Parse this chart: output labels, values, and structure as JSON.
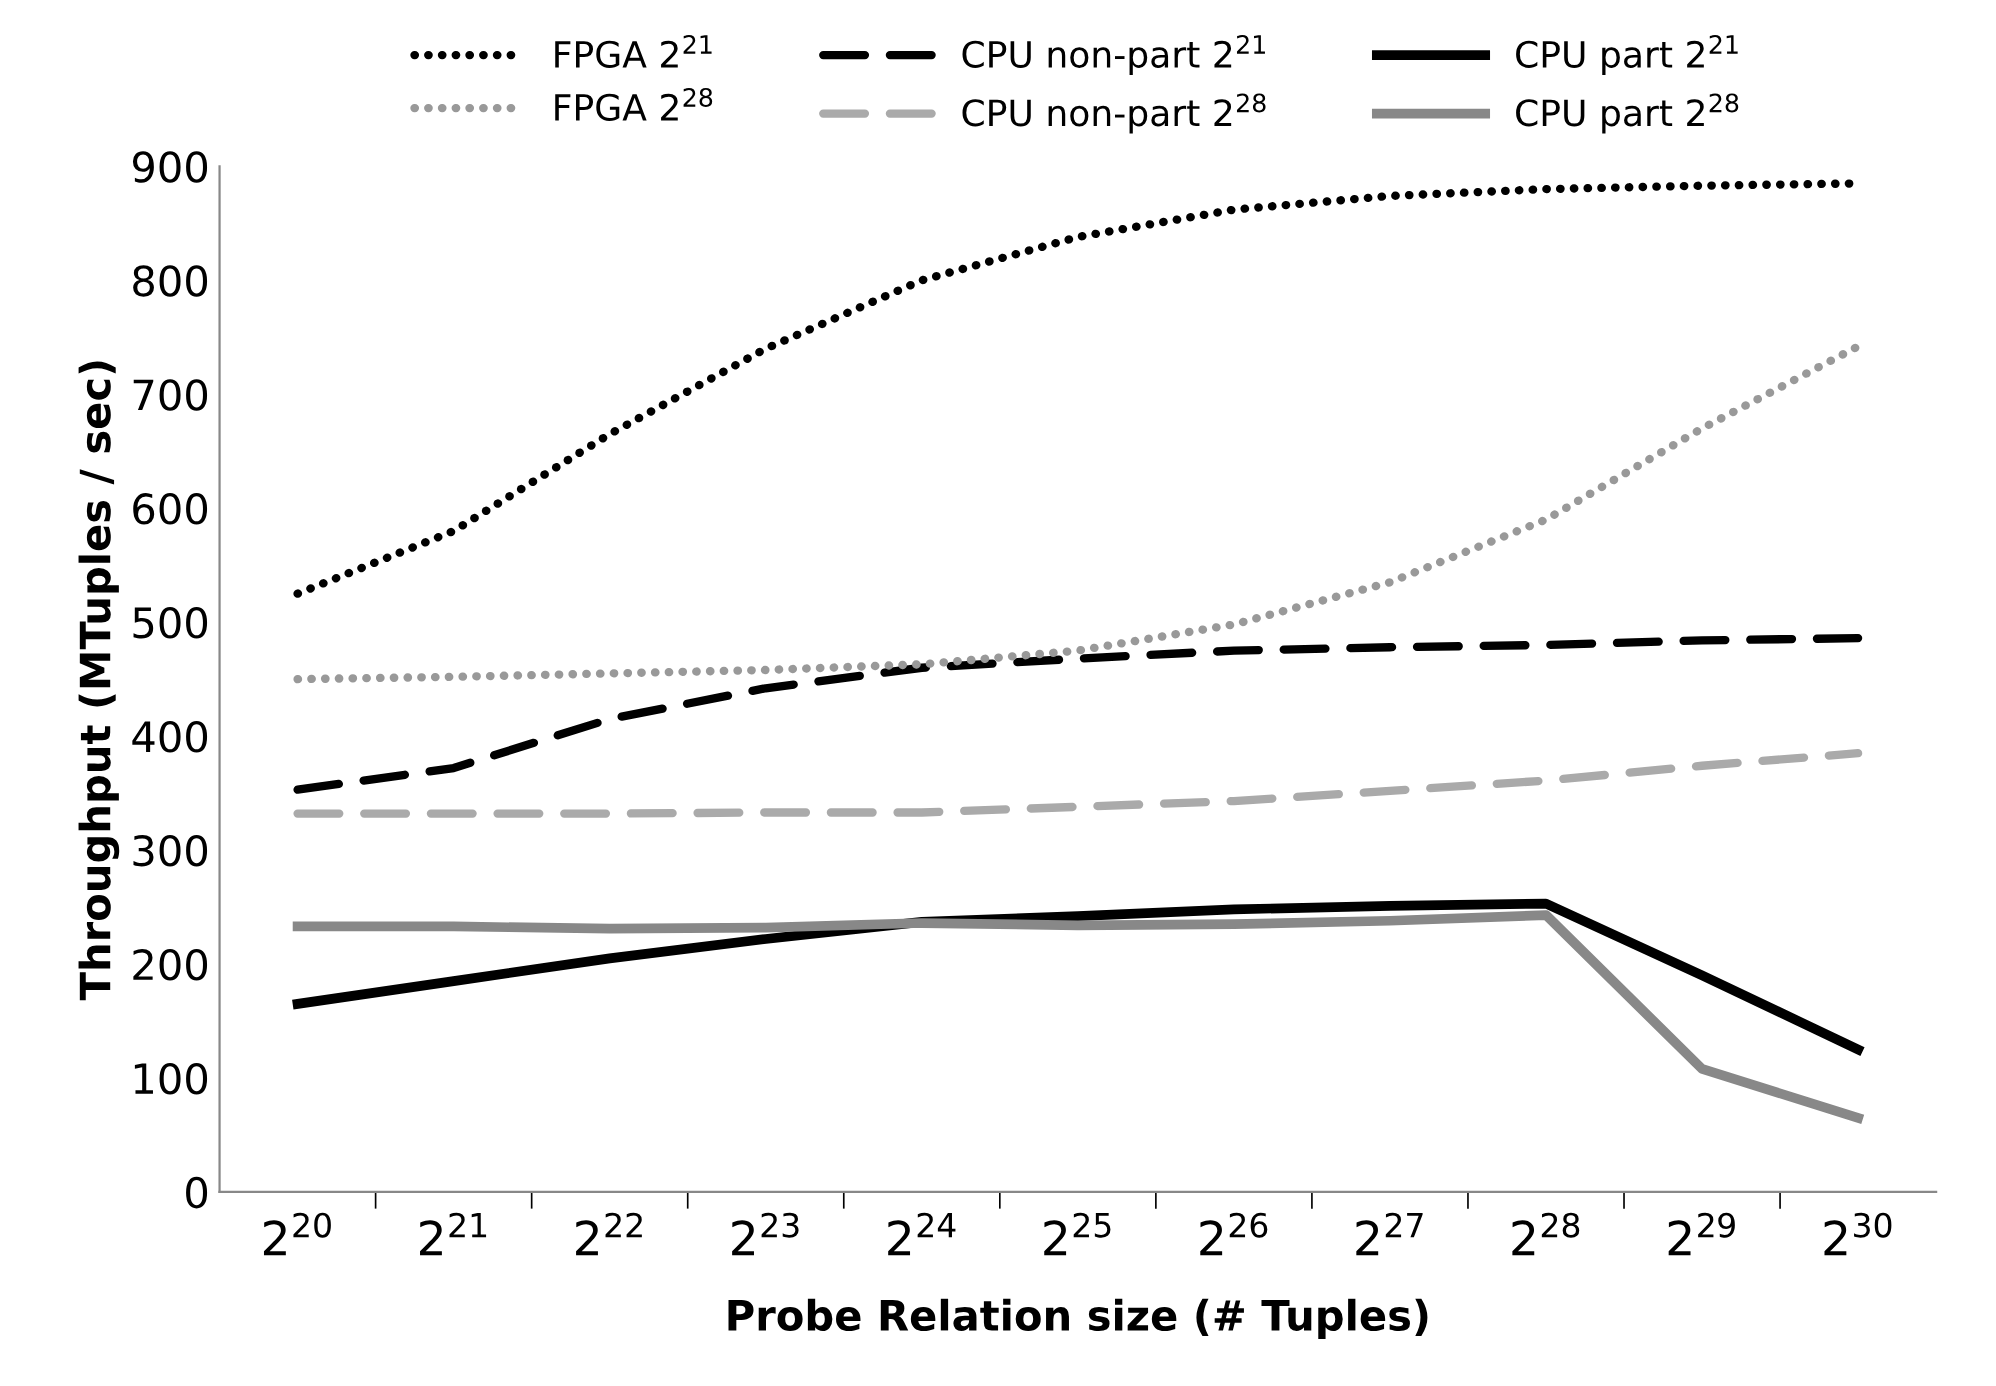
{
  "chart_data": {
    "type": "line",
    "xlabel": "Probe Relation size (# Tuples)",
    "ylabel": "Throughput (MTuples / sec)",
    "categories": [
      "2$^{20}$",
      "2$^{21}$",
      "2$^{22}$",
      "2$^{23}$",
      "2$^{24}$",
      "2$^{25}$",
      "2$^{26}$",
      "2$^{27}$",
      "2$^{28}$",
      "2$^{29}$",
      "2$^{30}$"
    ],
    "ylim": [
      0,
      900
    ],
    "yticks": [
      0,
      100,
      200,
      300,
      400,
      500,
      600,
      700,
      800,
      900
    ],
    "grid": false,
    "legend": "top",
    "marker": "none",
    "series": [
      {
        "name": "FPGA 2$^{21}$",
        "color": "#000000",
        "line_style": "dotted",
        "values": [
          525,
          580,
          665,
          740,
          800,
          838,
          862,
          874,
          880,
          883,
          885
        ]
      },
      {
        "name": "CPU non-part 2$^{21}$",
        "color": "#000000",
        "line_style": "dashed",
        "values": [
          353,
          372,
          415,
          442,
          460,
          468,
          475,
          478,
          480,
          484,
          486
        ]
      },
      {
        "name": "CPU part 2$^{21}$",
        "color": "#000000",
        "line_style": "solid",
        "values": [
          165,
          185,
          205,
          222,
          237,
          242,
          248,
          251,
          253,
          190,
          125
        ]
      },
      {
        "name": "FPGA 2$^{28}$",
        "color": "#999999",
        "line_style": "dotted",
        "values": [
          450,
          452,
          455,
          458,
          463,
          475,
          498,
          535,
          590,
          670,
          742
        ]
      },
      {
        "name": "CPU non-part 2$^{28}$",
        "color": "#aaaaaa",
        "line_style": "dashed",
        "values": [
          332,
          332,
          332,
          333,
          333,
          338,
          343,
          352,
          361,
          374,
          385
        ]
      },
      {
        "name": "CPU part 2$^{28}$",
        "color": "#888888",
        "line_style": "solid",
        "values": [
          233,
          233,
          231,
          232,
          236,
          234,
          235,
          238,
          243,
          108,
          65
        ]
      }
    ]
  }
}
